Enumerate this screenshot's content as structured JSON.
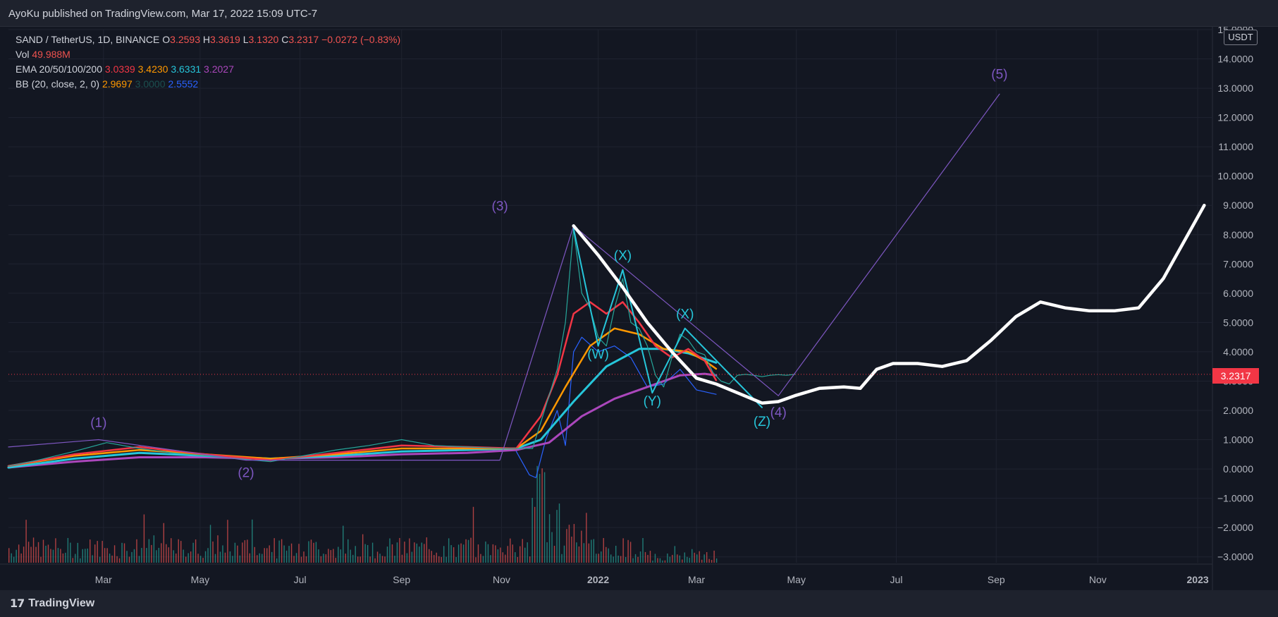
{
  "header": {
    "publisher": "AyoKu published on TradingView.com, Mar 17, 2022 15:09 UTC-7"
  },
  "footer": {
    "brand": "TradingView",
    "logo": "17"
  },
  "legend": {
    "symbol": "SAND / TetherUS, 1D, BINANCE",
    "ohlc": {
      "o_label": "O",
      "o": "3.2593",
      "h_label": "H",
      "h": "3.3619",
      "l_label": "L",
      "l": "3.1320",
      "c_label": "C",
      "c": "3.2317",
      "change": "−0.0272 (−0.83%)"
    },
    "vol_label": "Vol",
    "vol": "49.988M",
    "ema_label": "EMA 20/50/100/200",
    "ema": [
      "3.0339",
      "3.4230",
      "3.6331",
      "3.2027"
    ],
    "bb_label": "BB (20, close, 2, 0)",
    "bb": [
      "2.9697",
      "3.0000",
      "2.5552"
    ]
  },
  "price_axis": {
    "unit": "USDT",
    "last_price": "3.2317"
  },
  "colors": {
    "ema20": "#f23645",
    "ema50": "#ff9800",
    "ema100": "#26c6da",
    "ema200": "#ab47bc",
    "bb_lower": "#2962ff",
    "bb_mid": "#1b5e5e",
    "wave": "#7e57c2",
    "corrective": "#26c6da",
    "forecast": "#ffffff",
    "up": "#26a69a",
    "down": "#ef5350"
  },
  "chart_data": {
    "type": "line",
    "x_labels": [
      "Mar",
      "May",
      "Jul",
      "Sep",
      "Nov",
      "2022",
      "Mar",
      "May",
      "Jul",
      "Sep",
      "Nov",
      "2023"
    ],
    "y_ticks": [
      "15.0000",
      "14.0000",
      "13.0000",
      "12.0000",
      "11.0000",
      "10.0000",
      "9.0000",
      "8.0000",
      "7.0000",
      "6.0000",
      "5.0000",
      "4.0000",
      "3.0000",
      "2.0000",
      "1.0000",
      "0.0000",
      "−1.0000",
      "−2.0000",
      "−3.0000"
    ],
    "ylim": [
      -3.2,
      15.0
    ],
    "last_price": 3.2317,
    "price": {
      "t": [
        0,
        18,
        40,
        60,
        80,
        100,
        120,
        140,
        160,
        180,
        200,
        220,
        240,
        260,
        280,
        300,
        320,
        330,
        335,
        340,
        345,
        350,
        355,
        360,
        365,
        370,
        375,
        380,
        385,
        390,
        395,
        400,
        405,
        410,
        415,
        420,
        425,
        430,
        435,
        440,
        445,
        450,
        455,
        460,
        465,
        470,
        475,
        480
      ],
      "v": [
        0.1,
        0.3,
        0.6,
        0.9,
        0.7,
        0.55,
        0.45,
        0.35,
        0.25,
        0.45,
        0.65,
        0.8,
        1.0,
        0.8,
        0.75,
        0.7,
        0.7,
        2.5,
        3.4,
        5.0,
        8.2,
        6.0,
        5.5,
        4.5,
        4.2,
        5.5,
        6.5,
        5.0,
        4.8,
        4.2,
        3.2,
        2.8,
        3.8,
        4.6,
        4.4,
        4.0,
        3.9,
        3.3,
        3.0,
        2.9,
        3.2,
        3.23,
        3.2,
        3.15,
        3.2,
        3.22,
        3.2,
        3.23
      ]
    },
    "ema20": {
      "t": [
        0,
        40,
        80,
        120,
        160,
        200,
        240,
        280,
        310,
        325,
        335,
        345,
        355,
        365,
        375,
        385,
        395,
        405,
        415,
        425,
        432
      ],
      "v": [
        0.1,
        0.5,
        0.75,
        0.5,
        0.3,
        0.55,
        0.8,
        0.75,
        0.7,
        1.8,
        3.2,
        5.3,
        5.7,
        5.3,
        5.7,
        5.0,
        4.2,
        3.8,
        4.1,
        3.7,
        3.03
      ]
    },
    "ema50": {
      "t": [
        0,
        40,
        80,
        120,
        160,
        200,
        240,
        280,
        310,
        325,
        340,
        355,
        370,
        385,
        400,
        415,
        425,
        432
      ],
      "v": [
        0.1,
        0.45,
        0.65,
        0.5,
        0.35,
        0.5,
        0.7,
        0.7,
        0.7,
        1.3,
        2.8,
        4.2,
        4.8,
        4.6,
        4.1,
        4.0,
        3.7,
        3.42
      ]
    },
    "ema100": {
      "t": [
        0,
        40,
        80,
        120,
        160,
        200,
        240,
        280,
        310,
        325,
        345,
        365,
        385,
        400,
        415,
        432
      ],
      "v": [
        0.05,
        0.35,
        0.55,
        0.45,
        0.35,
        0.45,
        0.6,
        0.65,
        0.7,
        1.0,
        2.3,
        3.5,
        4.1,
        4.1,
        3.95,
        3.63
      ]
    },
    "ema200": {
      "t": [
        0,
        40,
        80,
        120,
        160,
        200,
        240,
        280,
        310,
        330,
        350,
        370,
        390,
        410,
        425,
        432
      ],
      "v": [
        0.05,
        0.25,
        0.4,
        0.4,
        0.35,
        0.4,
        0.5,
        0.55,
        0.65,
        0.9,
        1.8,
        2.4,
        2.8,
        3.2,
        3.25,
        3.2
      ]
    },
    "bb_lower": {
      "t": [
        310,
        318,
        322,
        328,
        335,
        340,
        345,
        350,
        360,
        370,
        380,
        390,
        400,
        410,
        420,
        432
      ],
      "v": [
        0.6,
        -0.2,
        -0.3,
        1.0,
        2.0,
        0.8,
        4.0,
        4.5,
        4.0,
        4.2,
        3.8,
        2.8,
        2.9,
        3.4,
        2.7,
        2.55
      ]
    },
    "forecast": {
      "t": [
        345,
        360,
        375,
        390,
        405,
        420,
        432,
        445,
        460,
        470,
        480,
        495,
        510,
        520,
        530,
        540,
        555,
        570,
        585,
        600,
        615,
        630,
        645,
        660,
        675,
        690,
        705,
        730
      ],
      "v": [
        8.3,
        7.3,
        6.2,
        5.0,
        4.0,
        3.1,
        2.9,
        2.6,
        2.25,
        2.3,
        2.5,
        2.75,
        2.8,
        2.75,
        3.4,
        3.6,
        3.6,
        3.5,
        3.7,
        4.4,
        5.2,
        5.7,
        5.5,
        5.4,
        5.4,
        5.5,
        6.5,
        9.0
      ]
    },
    "impulse_waves": {
      "t": [
        0,
        55,
        145,
        300,
        345,
        470,
        605
      ],
      "v": [
        0.75,
        1.0,
        0.3,
        0.3,
        8.3,
        2.5,
        12.8
      ],
      "labels": [
        "(1)",
        "(2)",
        "(3)",
        "(4)",
        "(5)"
      ]
    },
    "corrective_waves": {
      "t": [
        345,
        360,
        375,
        393,
        413,
        460
      ],
      "v": [
        8.2,
        4.2,
        6.8,
        2.6,
        4.8,
        2.1
      ],
      "labels": [
        "(W)",
        "(X)",
        "(Y)",
        "(X)",
        "(Z)"
      ]
    },
    "volume": {
      "max": 100
    }
  }
}
